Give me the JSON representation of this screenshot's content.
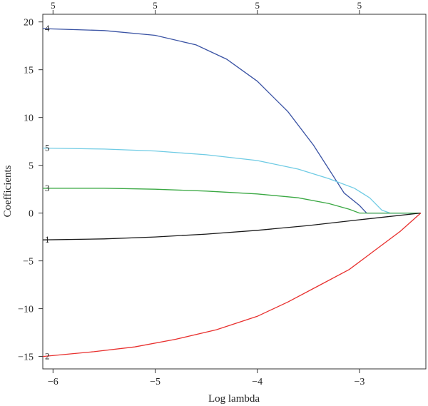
{
  "chart_data": {
    "type": "line",
    "xlabel": "Log lambda",
    "ylabel": "Coefficients",
    "xlim": [
      -6.1,
      -2.35
    ],
    "ylim": [
      -16.3,
      20.8
    ],
    "x_ticks": [
      -6,
      -5,
      -4,
      -3
    ],
    "x_tick_labels": [
      "−6",
      "−5",
      "−4",
      "−3"
    ],
    "y_ticks": [
      -15,
      -10,
      -5,
      0,
      5,
      10,
      15,
      20
    ],
    "y_tick_labels": [
      "−15",
      "−10",
      "−5",
      "0",
      "5",
      "10",
      "15",
      "20"
    ],
    "top_axis": {
      "ticks": [
        -6,
        -5,
        -4,
        -3
      ],
      "labels": [
        "5",
        "5",
        "5",
        "5"
      ]
    },
    "grid": false,
    "series": [
      {
        "name": "4",
        "color": "#3a53a4",
        "points": [
          [
            -6.1,
            19.3
          ],
          [
            -5.5,
            19.1
          ],
          [
            -5.0,
            18.6
          ],
          [
            -4.6,
            17.6
          ],
          [
            -4.3,
            16.1
          ],
          [
            -4.0,
            13.8
          ],
          [
            -3.7,
            10.6
          ],
          [
            -3.45,
            7.1
          ],
          [
            -3.3,
            4.6
          ],
          [
            -3.15,
            2.1
          ],
          [
            -3.0,
            0.8
          ],
          [
            -2.93,
            0.0
          ],
          [
            -2.4,
            0.0
          ]
        ]
      },
      {
        "name": "5",
        "color": "#6fcbe4",
        "points": [
          [
            -6.1,
            6.8
          ],
          [
            -5.5,
            6.7
          ],
          [
            -5.0,
            6.5
          ],
          [
            -4.5,
            6.1
          ],
          [
            -4.0,
            5.5
          ],
          [
            -3.6,
            4.6
          ],
          [
            -3.3,
            3.6
          ],
          [
            -3.05,
            2.6
          ],
          [
            -2.9,
            1.6
          ],
          [
            -2.78,
            0.3
          ],
          [
            -2.7,
            0.0
          ],
          [
            -2.4,
            0.0
          ]
        ]
      },
      {
        "name": "3",
        "color": "#3aa843",
        "points": [
          [
            -6.1,
            2.6
          ],
          [
            -5.5,
            2.6
          ],
          [
            -5.0,
            2.5
          ],
          [
            -4.5,
            2.3
          ],
          [
            -4.0,
            2.0
          ],
          [
            -3.6,
            1.6
          ],
          [
            -3.3,
            1.0
          ],
          [
            -3.1,
            0.4
          ],
          [
            -3.0,
            0.0
          ],
          [
            -2.4,
            0.0
          ]
        ]
      },
      {
        "name": "1",
        "color": "#1a1a1a",
        "points": [
          [
            -6.1,
            -2.8
          ],
          [
            -5.5,
            -2.7
          ],
          [
            -5.0,
            -2.5
          ],
          [
            -4.5,
            -2.2
          ],
          [
            -4.0,
            -1.8
          ],
          [
            -3.5,
            -1.3
          ],
          [
            -3.0,
            -0.7
          ],
          [
            -2.7,
            -0.35
          ],
          [
            -2.4,
            0.0
          ]
        ]
      },
      {
        "name": "2",
        "color": "#e8302e",
        "points": [
          [
            -6.1,
            -15.0
          ],
          [
            -5.6,
            -14.5
          ],
          [
            -5.2,
            -14.0
          ],
          [
            -4.8,
            -13.2
          ],
          [
            -4.4,
            -12.2
          ],
          [
            -4.0,
            -10.8
          ],
          [
            -3.7,
            -9.3
          ],
          [
            -3.4,
            -7.6
          ],
          [
            -3.1,
            -5.9
          ],
          [
            -2.8,
            -3.5
          ],
          [
            -2.6,
            -1.9
          ],
          [
            -2.4,
            0.0
          ]
        ]
      }
    ],
    "line_labels": [
      {
        "text": "4",
        "y": 19.3
      },
      {
        "text": "5",
        "y": 6.8
      },
      {
        "text": "3",
        "y": 2.6
      },
      {
        "text": "1",
        "y": -2.8
      },
      {
        "text": "2",
        "y": -15.0
      }
    ]
  }
}
